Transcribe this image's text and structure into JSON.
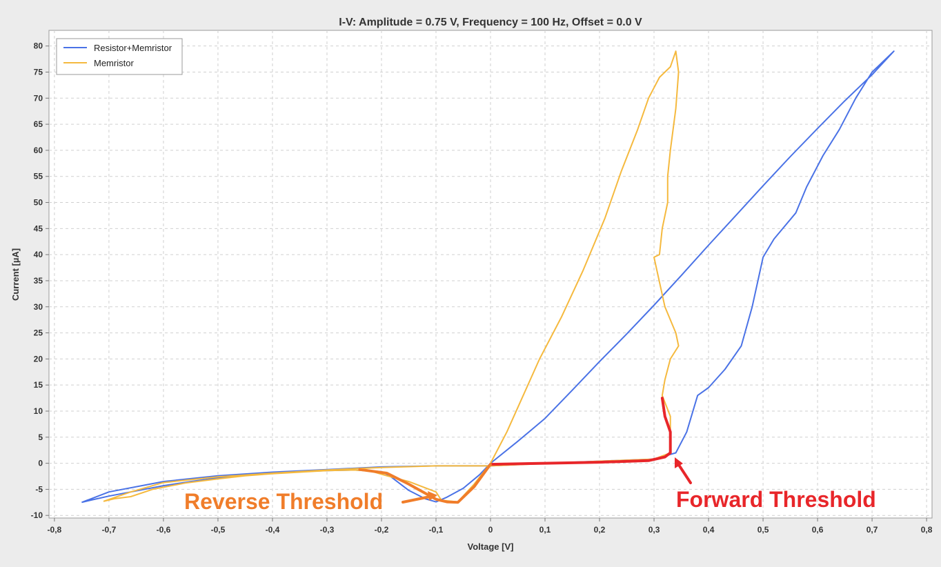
{
  "chart_data": {
    "type": "line",
    "title": "I-V: Amplitude = 0.75 V, Frequency = 100 Hz, Offset = 0.0 V",
    "xlabel": "Voltage [V]",
    "ylabel": "Current [µA]",
    "xlim": [
      -0.81,
      0.81
    ],
    "ylim": [
      -10.5,
      83
    ],
    "grid": true,
    "legend_position": "top-left",
    "x_ticks": [
      -0.8,
      -0.7,
      -0.6,
      -0.5,
      -0.4,
      -0.3,
      -0.2,
      -0.1,
      0,
      0.1,
      0.2,
      0.3,
      0.4,
      0.5,
      0.6,
      0.7,
      0.8
    ],
    "x_tick_labels": [
      "-0,8",
      "-0,7",
      "-0,6",
      "-0,5",
      "-0,4",
      "-0,3",
      "-0,2",
      "-0,1",
      "0",
      "0,1",
      "0,2",
      "0,3",
      "0,4",
      "0,5",
      "0,6",
      "0,7",
      "0,8"
    ],
    "y_ticks": [
      -10,
      -5,
      0,
      5,
      10,
      15,
      20,
      25,
      30,
      35,
      40,
      45,
      50,
      55,
      60,
      65,
      70,
      75,
      80
    ],
    "y_tick_labels": [
      "-10",
      "-5",
      "0",
      "5",
      "10",
      "15",
      "20",
      "25",
      "30",
      "35",
      "40",
      "45",
      "50",
      "55",
      "60",
      "65",
      "70",
      "75",
      "80"
    ],
    "series": [
      {
        "name": "Resistor+Memristor",
        "color": "#4a72e6",
        "points": [
          [
            -0.75,
            -7.5
          ],
          [
            -0.73,
            -7.0
          ],
          [
            -0.7,
            -6.3
          ],
          [
            -0.65,
            -5.3
          ],
          [
            -0.6,
            -4.3
          ],
          [
            -0.55,
            -3.5
          ],
          [
            -0.5,
            -2.8
          ],
          [
            -0.45,
            -2.3
          ],
          [
            -0.4,
            -1.9
          ],
          [
            -0.35,
            -1.6
          ],
          [
            -0.3,
            -1.4
          ],
          [
            -0.25,
            -1.3
          ],
          [
            -0.2,
            -1.6
          ],
          [
            -0.185,
            -2.4
          ],
          [
            -0.15,
            -5.2
          ],
          [
            -0.12,
            -6.8
          ],
          [
            -0.1,
            -7.4
          ],
          [
            -0.08,
            -6.5
          ],
          [
            -0.05,
            -4.8
          ],
          [
            -0.02,
            -2.2
          ],
          [
            0.0,
            0.0
          ],
          [
            0.05,
            4.2
          ],
          [
            0.1,
            8.6
          ],
          [
            0.15,
            14.0
          ],
          [
            0.2,
            19.5
          ],
          [
            0.25,
            24.8
          ],
          [
            0.3,
            30.3
          ],
          [
            0.35,
            36.0
          ],
          [
            0.4,
            41.8
          ],
          [
            0.45,
            47.5
          ],
          [
            0.5,
            53.2
          ],
          [
            0.55,
            58.8
          ],
          [
            0.6,
            64.2
          ],
          [
            0.65,
            69.5
          ],
          [
            0.7,
            74.5
          ],
          [
            0.74,
            79.0
          ],
          [
            0.72,
            77.0
          ],
          [
            0.7,
            75.0
          ],
          [
            0.67,
            70.0
          ],
          [
            0.64,
            64.0
          ],
          [
            0.61,
            59.0
          ],
          [
            0.58,
            53.0
          ],
          [
            0.56,
            48.0
          ],
          [
            0.52,
            43.0
          ],
          [
            0.5,
            39.5
          ],
          [
            0.48,
            30.0
          ],
          [
            0.46,
            22.5
          ],
          [
            0.43,
            18.0
          ],
          [
            0.4,
            14.5
          ],
          [
            0.38,
            13.0
          ],
          [
            0.36,
            6.0
          ],
          [
            0.34,
            2.0
          ],
          [
            0.3,
            0.8
          ],
          [
            0.2,
            0.4
          ],
          [
            0.1,
            0.0
          ],
          [
            0.0,
            -0.5
          ],
          [
            -0.1,
            -0.5
          ],
          [
            -0.2,
            -0.7
          ],
          [
            -0.3,
            -1.2
          ],
          [
            -0.4,
            -1.7
          ],
          [
            -0.5,
            -2.4
          ],
          [
            -0.6,
            -3.5
          ],
          [
            -0.7,
            -5.5
          ],
          [
            -0.75,
            -7.5
          ]
        ]
      },
      {
        "name": "Memristor",
        "color": "#f5b93e",
        "points": [
          [
            -0.71,
            -7.3
          ],
          [
            -0.69,
            -6.8
          ],
          [
            -0.66,
            -6.4
          ],
          [
            -0.62,
            -5.0
          ],
          [
            -0.56,
            -3.8
          ],
          [
            -0.5,
            -3.0
          ],
          [
            -0.45,
            -2.4
          ],
          [
            -0.4,
            -2.0
          ],
          [
            -0.35,
            -1.7
          ],
          [
            -0.3,
            -1.4
          ],
          [
            -0.25,
            -1.3
          ],
          [
            -0.22,
            -1.5
          ],
          [
            -0.19,
            -2.4
          ],
          [
            -0.15,
            -3.5
          ],
          [
            -0.1,
            -5.5
          ],
          [
            -0.09,
            -7.1
          ],
          [
            -0.06,
            -7.4
          ],
          [
            -0.03,
            -4.0
          ],
          [
            0.0,
            0.0
          ],
          [
            0.03,
            6.0
          ],
          [
            0.06,
            13.0
          ],
          [
            0.09,
            20.0
          ],
          [
            0.13,
            28.0
          ],
          [
            0.17,
            37.0
          ],
          [
            0.21,
            47.0
          ],
          [
            0.24,
            56.0
          ],
          [
            0.27,
            64.0
          ],
          [
            0.29,
            70.0
          ],
          [
            0.31,
            74.0
          ],
          [
            0.33,
            76.0
          ],
          [
            0.34,
            79.0
          ],
          [
            0.345,
            75.0
          ],
          [
            0.34,
            68.0
          ],
          [
            0.33,
            60.0
          ],
          [
            0.325,
            55.0
          ],
          [
            0.325,
            50.0
          ],
          [
            0.315,
            45.0
          ],
          [
            0.31,
            40.0
          ],
          [
            0.3,
            39.5
          ],
          [
            0.32,
            30.0
          ],
          [
            0.34,
            25.0
          ],
          [
            0.345,
            22.5
          ],
          [
            0.33,
            20.0
          ],
          [
            0.32,
            16.0
          ],
          [
            0.315,
            13.0
          ],
          [
            0.33,
            9.0
          ],
          [
            0.33,
            2.0
          ],
          [
            0.3,
            0.8
          ],
          [
            0.2,
            0.4
          ],
          [
            0.0,
            -0.5
          ],
          [
            -0.1,
            -0.5
          ],
          [
            -0.2,
            -0.8
          ],
          [
            -0.3,
            -1.3
          ],
          [
            -0.4,
            -1.9
          ],
          [
            -0.5,
            -2.6
          ],
          [
            -0.6,
            -3.7
          ],
          [
            -0.66,
            -5.5
          ],
          [
            -0.71,
            -7.3
          ]
        ]
      }
    ],
    "highlights": [
      {
        "name": "forward-threshold-path",
        "color": "#e8262a",
        "points": [
          [
            0.0,
            -0.2
          ],
          [
            0.1,
            0.0
          ],
          [
            0.2,
            0.2
          ],
          [
            0.29,
            0.5
          ],
          [
            0.32,
            1.2
          ],
          [
            0.33,
            2.0
          ],
          [
            0.33,
            6.0
          ],
          [
            0.32,
            9.0
          ],
          [
            0.315,
            12.5
          ]
        ]
      },
      {
        "name": "reverse-threshold-path",
        "color": "#f07d2a",
        "points": [
          [
            -0.24,
            -1.2
          ],
          [
            -0.19,
            -1.9
          ],
          [
            -0.15,
            -4.0
          ],
          [
            -0.1,
            -6.9
          ],
          [
            -0.08,
            -7.4
          ],
          [
            -0.06,
            -7.5
          ],
          [
            -0.03,
            -4.5
          ],
          [
            0.0,
            -0.2
          ]
        ]
      }
    ],
    "legend": [
      {
        "label": "Resistor+Memristor",
        "color": "#4a72e6"
      },
      {
        "label": "Memristor",
        "color": "#f5b93e"
      }
    ],
    "annotations": [
      {
        "text": "Forward Threshold",
        "color": "#e8262a",
        "arrow_to": [
          0.335,
          0.8
        ]
      },
      {
        "text": "Reverse Threshold",
        "color": "#f07d2a",
        "arrow_to": [
          -0.1,
          -7.3
        ]
      }
    ]
  }
}
